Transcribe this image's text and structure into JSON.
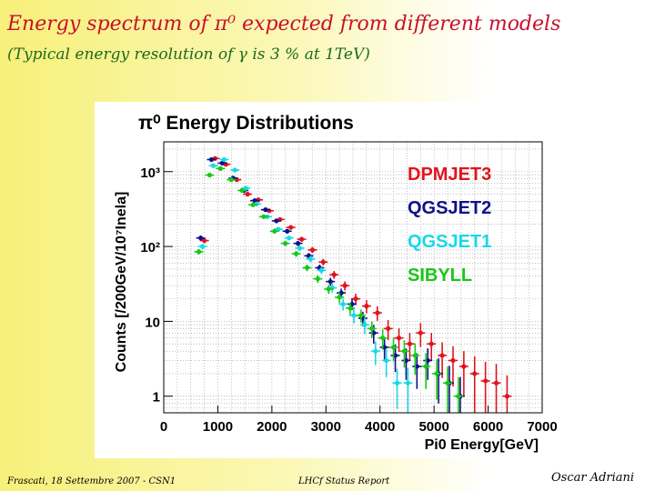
{
  "slide": {
    "title": "Energy spectrum of π⁰ expected from different models",
    "subtitle": "(Typical energy resolution of γ is 3 % at 1TeV)"
  },
  "footer": {
    "left": "Frascati, 18 Settembre 2007 - CSN1",
    "center": "LHCf Status Report",
    "right": "Oscar Adriani"
  },
  "chart_data": {
    "type": "scatter",
    "title": "π⁰ Energy Distributions",
    "xlabel": "Pi0 Energy[GeV]",
    "ylabel": "Counts [/200GeV/10⁷Inela]",
    "xlim": [
      0,
      7000
    ],
    "ylim": [
      0.6,
      2500
    ],
    "y_scale": "log",
    "grid": true,
    "legend_position": "top-right",
    "x_ticks": [
      "0",
      "1000",
      "2000",
      "3000",
      "4000",
      "5000",
      "6000",
      "7000"
    ],
    "y_ticks": [
      {
        "value": 1,
        "label": "1"
      },
      {
        "value": 10,
        "label": "10"
      },
      {
        "value": 100,
        "label": "10²"
      },
      {
        "value": 1000,
        "label": "10³"
      }
    ],
    "series": [
      {
        "name": "DPMJET3",
        "color": "#e0141e",
        "x": [
          700,
          900,
          1100,
          1300,
          1500,
          1700,
          1900,
          2100,
          2300,
          2500,
          2700,
          2900,
          3100,
          3300,
          3500,
          3700,
          3900,
          4100,
          4300,
          4500,
          4700,
          4900,
          5100,
          5300,
          5500,
          5700,
          5900,
          6100,
          6300
        ],
        "y": [
          120,
          1500,
          1250,
          780,
          500,
          420,
          300,
          230,
          180,
          125,
          90,
          62,
          42,
          30,
          20,
          16,
          13,
          8,
          6,
          5,
          7,
          5,
          3.5,
          3,
          2.5,
          2,
          1.6,
          1.5,
          1
        ],
        "yerr_rel": [
          0.08,
          0.03,
          0.03,
          0.04,
          0.05,
          0.05,
          0.06,
          0.06,
          0.07,
          0.08,
          0.09,
          0.1,
          0.12,
          0.14,
          0.17,
          0.2,
          0.22,
          0.3,
          0.35,
          0.4,
          0.35,
          0.4,
          0.5,
          0.55,
          0.6,
          0.7,
          0.8,
          0.8,
          0.9
        ]
      },
      {
        "name": "QGSJET2",
        "color": "#10108a",
        "x": [
          700,
          900,
          1100,
          1300,
          1500,
          1700,
          1900,
          2100,
          2300,
          2500,
          2700,
          2900,
          3100,
          3300,
          3500,
          3700,
          3900,
          4100,
          4300,
          4500,
          4700,
          4900,
          5100,
          5300,
          5500
        ],
        "y": [
          130,
          1450,
          1300,
          820,
          560,
          410,
          310,
          220,
          160,
          110,
          75,
          52,
          34,
          24,
          17,
          11,
          7,
          4.5,
          3.5,
          3,
          2.5,
          3,
          2,
          1.5,
          1
        ],
        "yerr_rel": [
          0.08,
          0.03,
          0.03,
          0.04,
          0.05,
          0.05,
          0.06,
          0.06,
          0.07,
          0.08,
          0.09,
          0.1,
          0.12,
          0.14,
          0.17,
          0.22,
          0.28,
          0.35,
          0.4,
          0.45,
          0.5,
          0.45,
          0.6,
          0.7,
          0.8
        ]
      },
      {
        "name": "QGSJET1",
        "color": "#18d8e8",
        "x": [
          700,
          900,
          1100,
          1300,
          1500,
          1700,
          1900,
          2100,
          2300,
          2500,
          2700,
          2900,
          3100,
          3300,
          3500,
          3700,
          3900,
          4100,
          4300,
          4500
        ],
        "y": [
          100,
          1200,
          1450,
          1050,
          600,
          370,
          250,
          170,
          130,
          95,
          68,
          48,
          28,
          17,
          12,
          9,
          4,
          3,
          1.5,
          1.5
        ],
        "yerr_rel": [
          0.08,
          0.03,
          0.03,
          0.04,
          0.05,
          0.05,
          0.06,
          0.07,
          0.07,
          0.08,
          0.1,
          0.11,
          0.14,
          0.18,
          0.22,
          0.25,
          0.35,
          0.4,
          0.55,
          0.6
        ]
      },
      {
        "name": "SIBYLL",
        "color": "#18c818",
        "x": [
          700,
          900,
          1100,
          1300,
          1500,
          1700,
          1900,
          2100,
          2300,
          2500,
          2700,
          2900,
          3100,
          3300,
          3500,
          3700,
          3900,
          4100,
          4300,
          4500,
          4700,
          4900,
          5100,
          5300,
          5500
        ],
        "y": [
          85,
          900,
          1100,
          780,
          560,
          360,
          250,
          160,
          110,
          80,
          52,
          37,
          27,
          21,
          15,
          12,
          8,
          6,
          4.5,
          4,
          3.5,
          2.5,
          2,
          1.5,
          1
        ],
        "yerr_rel": [
          0.08,
          0.03,
          0.03,
          0.04,
          0.05,
          0.05,
          0.06,
          0.07,
          0.08,
          0.09,
          0.1,
          0.12,
          0.14,
          0.16,
          0.18,
          0.2,
          0.25,
          0.3,
          0.35,
          0.4,
          0.45,
          0.5,
          0.55,
          0.65,
          0.8
        ]
      }
    ]
  }
}
